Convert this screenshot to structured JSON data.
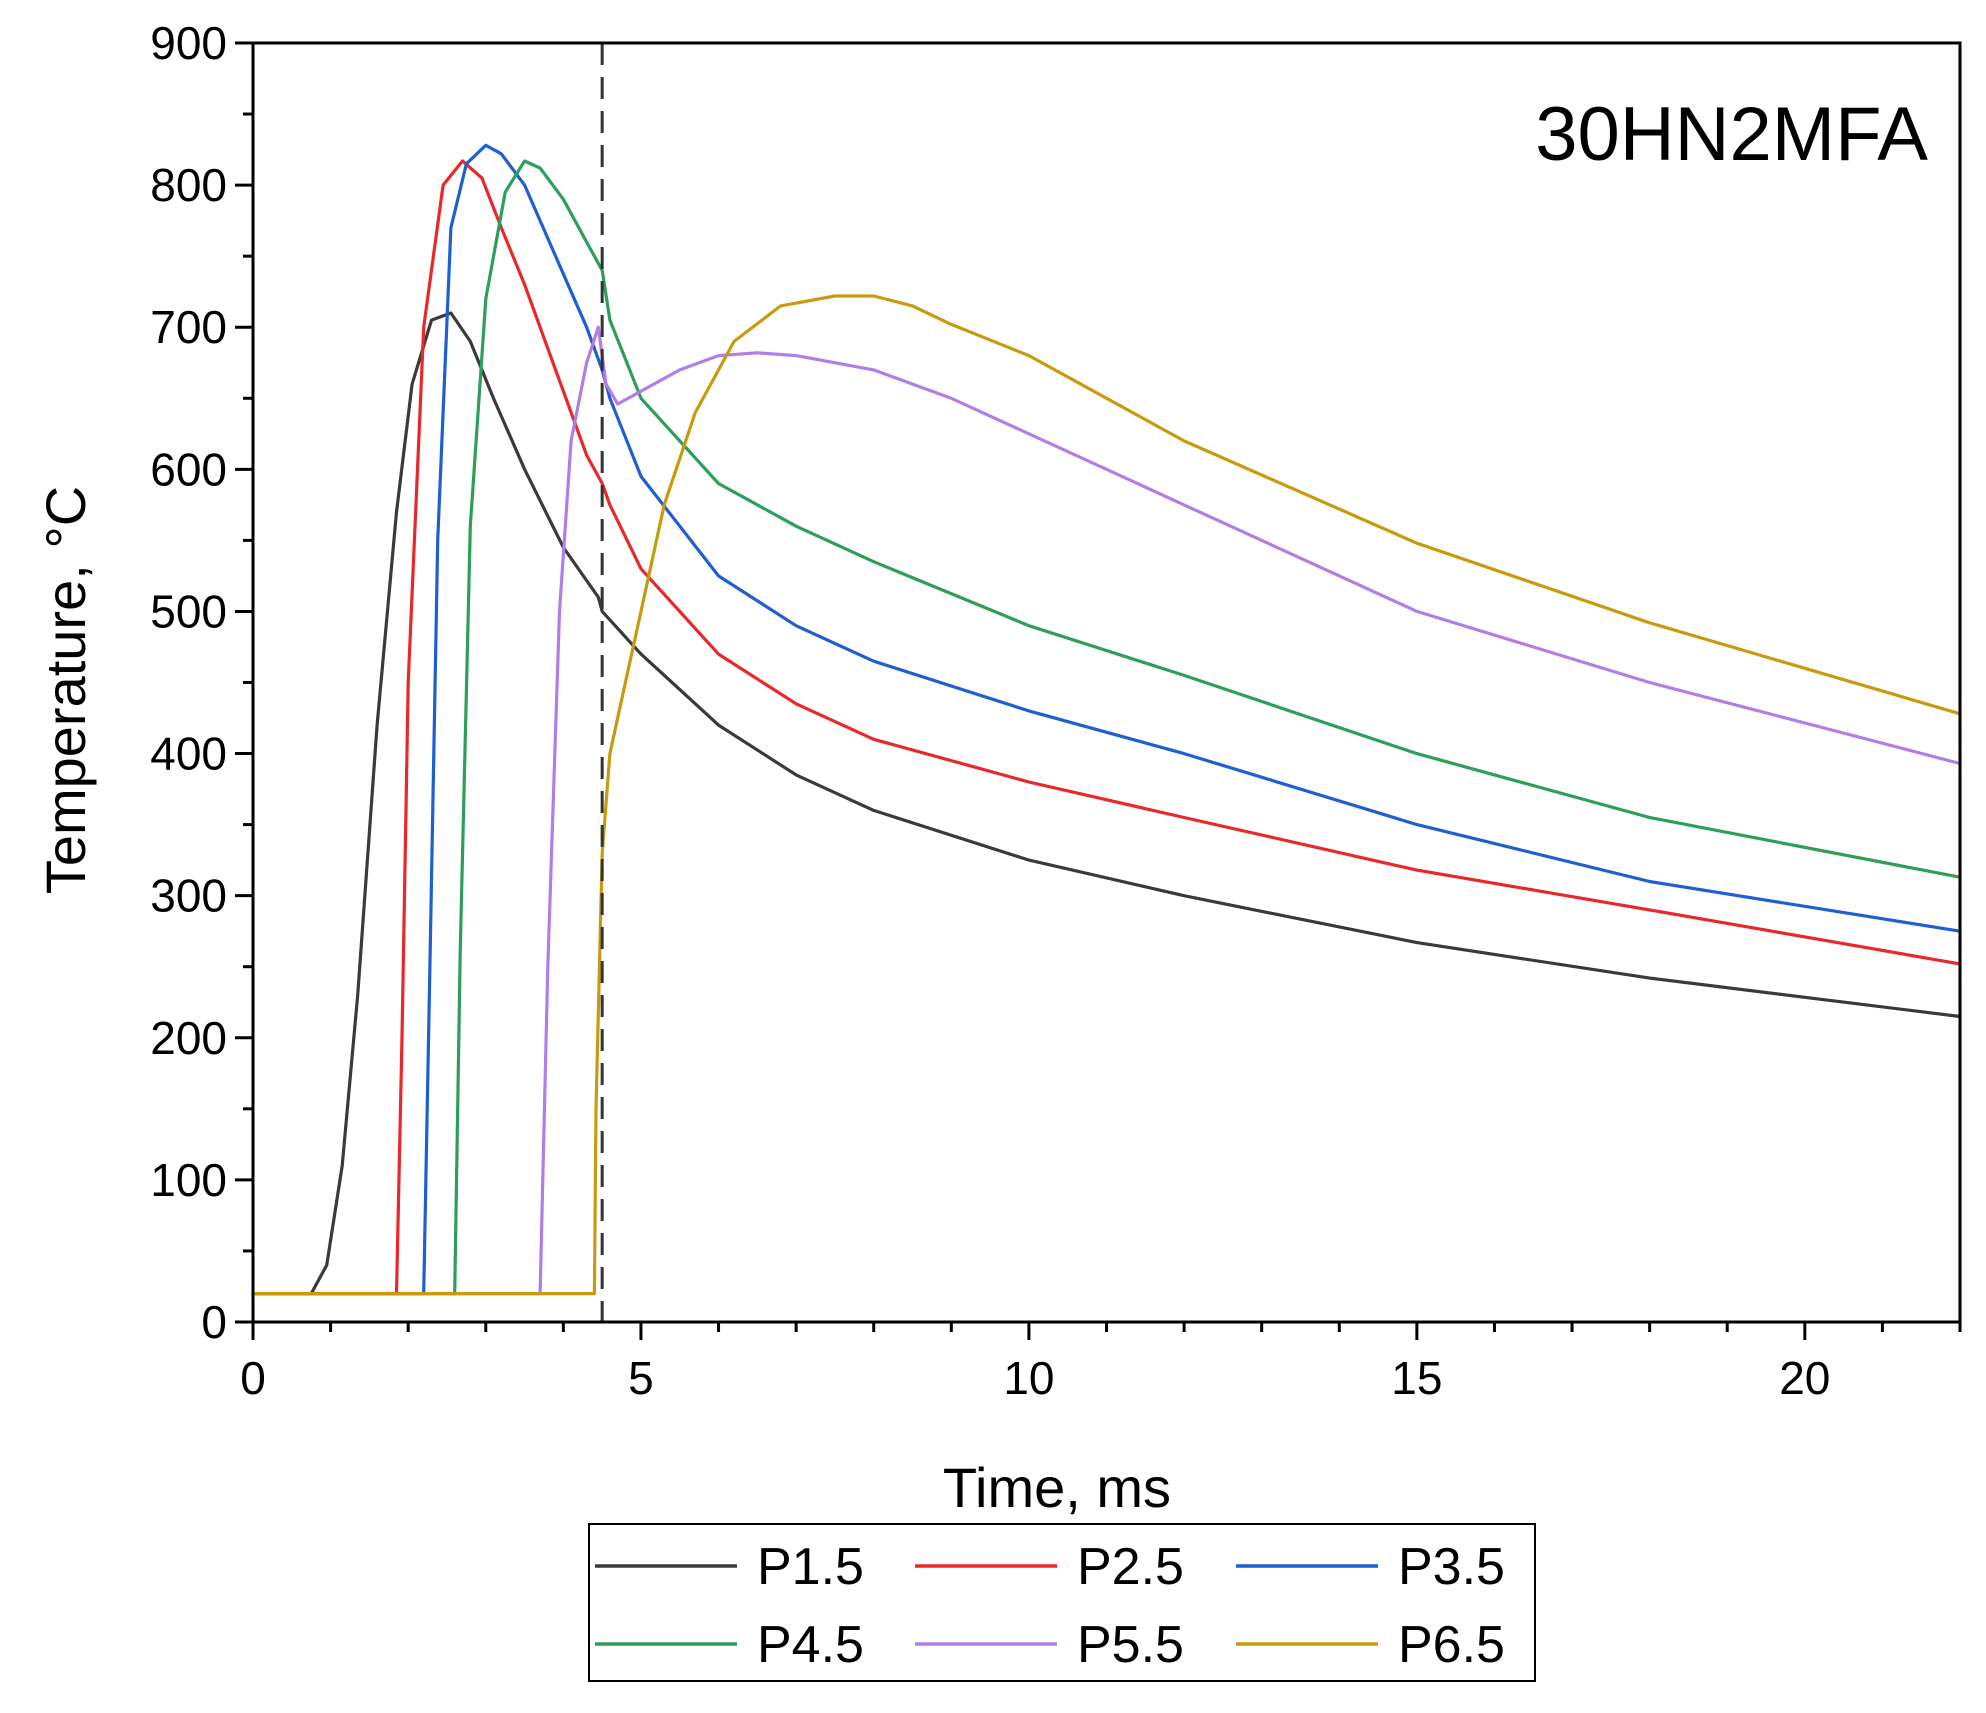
{
  "chart_data": {
    "type": "line",
    "title": "",
    "annotation": "30HN2MFA",
    "xlabel": "Time, ms",
    "ylabel": "Temperature, °C",
    "xlim": [
      0,
      22
    ],
    "ylim": [
      0,
      900
    ],
    "xticks": [
      0,
      5,
      10,
      15,
      20
    ],
    "yticks": [
      0,
      100,
      200,
      300,
      400,
      500,
      600,
      700,
      800,
      900
    ],
    "grid": false,
    "legend_position": "bottom",
    "reference_line": {
      "axis": "x",
      "value": 4.5,
      "style": "dashed"
    },
    "series": [
      {
        "name": "P1.5",
        "color": "#3a3a3a",
        "x": [
          0,
          0.75,
          0.95,
          1.15,
          1.35,
          1.6,
          1.85,
          2.05,
          2.3,
          2.55,
          2.8,
          3.1,
          3.5,
          4.0,
          4.45,
          4.5,
          5.0,
          5.5,
          6.0,
          7.0,
          8.0,
          10.0,
          12.0,
          15.0,
          18.0,
          22.0
        ],
        "y": [
          20,
          20,
          40,
          110,
          230,
          420,
          570,
          660,
          705,
          710,
          690,
          650,
          600,
          545,
          510,
          500,
          470,
          445,
          420,
          385,
          360,
          325,
          300,
          267,
          242,
          215
        ]
      },
      {
        "name": "P2.5",
        "color": "#e8282b",
        "x": [
          0,
          1.85,
          1.92,
          2.0,
          2.2,
          2.45,
          2.7,
          2.95,
          3.2,
          3.5,
          3.9,
          4.3,
          4.5,
          4.6,
          5.0,
          6.0,
          7.0,
          8.0,
          10.0,
          12.0,
          15.0,
          18.0,
          22.0
        ],
        "y": [
          20,
          20,
          200,
          450,
          700,
          800,
          817,
          805,
          770,
          730,
          670,
          610,
          590,
          575,
          530,
          470,
          435,
          410,
          380,
          355,
          318,
          290,
          252
        ]
      },
      {
        "name": "P3.5",
        "color": "#1f5fd0",
        "x": [
          0,
          2.2,
          2.28,
          2.38,
          2.55,
          2.75,
          3.0,
          3.2,
          3.5,
          3.9,
          4.3,
          4.5,
          4.6,
          5.0,
          6.0,
          7.0,
          8.0,
          10.0,
          12.0,
          15.0,
          18.0,
          22.0
        ],
        "y": [
          20,
          20,
          250,
          550,
          770,
          815,
          828,
          822,
          800,
          750,
          700,
          670,
          650,
          595,
          525,
          490,
          465,
          430,
          400,
          350,
          310,
          275
        ]
      },
      {
        "name": "P4.5",
        "color": "#2e9e5b",
        "x": [
          0,
          2.6,
          2.67,
          2.8,
          3.0,
          3.25,
          3.5,
          3.7,
          4.0,
          4.3,
          4.45,
          4.5,
          4.6,
          5.0,
          6.0,
          7.0,
          8.0,
          10.0,
          12.0,
          15.0,
          18.0,
          22.0
        ],
        "y": [
          20,
          20,
          260,
          560,
          720,
          795,
          817,
          812,
          790,
          760,
          745,
          740,
          705,
          650,
          590,
          560,
          535,
          490,
          455,
          400,
          355,
          313
        ]
      },
      {
        "name": "P5.5",
        "color": "#b27ee6",
        "x": [
          0,
          3.7,
          3.8,
          3.95,
          4.1,
          4.3,
          4.45,
          4.55,
          4.7,
          5.0,
          5.5,
          6.0,
          6.5,
          7.0,
          8.0,
          9.0,
          10.0,
          12.0,
          15.0,
          18.0,
          22.0
        ],
        "y": [
          20,
          20,
          250,
          500,
          620,
          675,
          700,
          660,
          646,
          655,
          670,
          680,
          682,
          680,
          670,
          650,
          625,
          575,
          500,
          450,
          393
        ]
      },
      {
        "name": "P6.5",
        "color": "#c99a0e",
        "x": [
          0,
          4.4,
          4.42,
          4.5,
          4.6,
          4.8,
          5.0,
          5.3,
          5.7,
          6.2,
          6.8,
          7.5,
          8.0,
          8.5,
          9.0,
          10.0,
          12.0,
          15.0,
          18.0,
          22.0
        ],
        "y": [
          20,
          20,
          150,
          330,
          400,
          450,
          500,
          575,
          640,
          690,
          715,
          722,
          722,
          715,
          702,
          680,
          620,
          548,
          492,
          428
        ]
      }
    ]
  }
}
